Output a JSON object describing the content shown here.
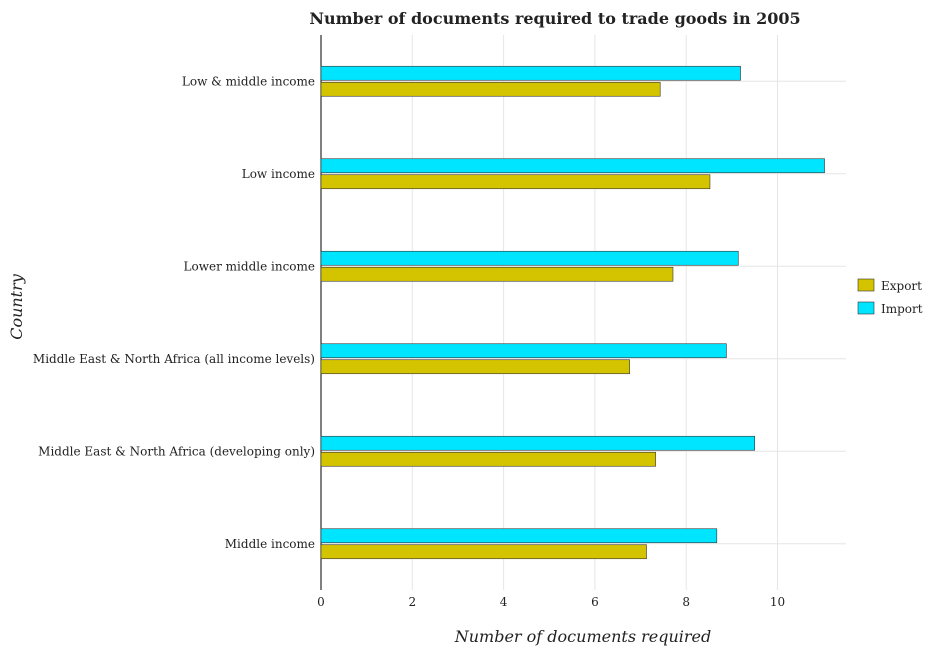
{
  "chart_data": {
    "type": "bar",
    "orientation": "horizontal",
    "title": "Number of documents required to trade goods in 2005",
    "xlabel": "Number of documents required",
    "ylabel": "Country",
    "categories": [
      "Low & middle income",
      "Low income",
      "Lower middle income",
      "Middle East & North Africa (all income levels)",
      "Middle East & North Africa (developing only)",
      "Middle income"
    ],
    "series": [
      {
        "name": "Export",
        "color": "#d4c400",
        "values": [
          7.43,
          8.52,
          7.71,
          6.76,
          7.33,
          7.13
        ]
      },
      {
        "name": "Import",
        "color": "#00e5ff",
        "values": [
          9.19,
          11.03,
          9.14,
          8.88,
          9.5,
          8.67
        ]
      }
    ],
    "xlim": [
      0,
      11.5
    ],
    "xticks": [
      0,
      2,
      4,
      6,
      8,
      10
    ],
    "grid": true,
    "legend_position": "right"
  }
}
